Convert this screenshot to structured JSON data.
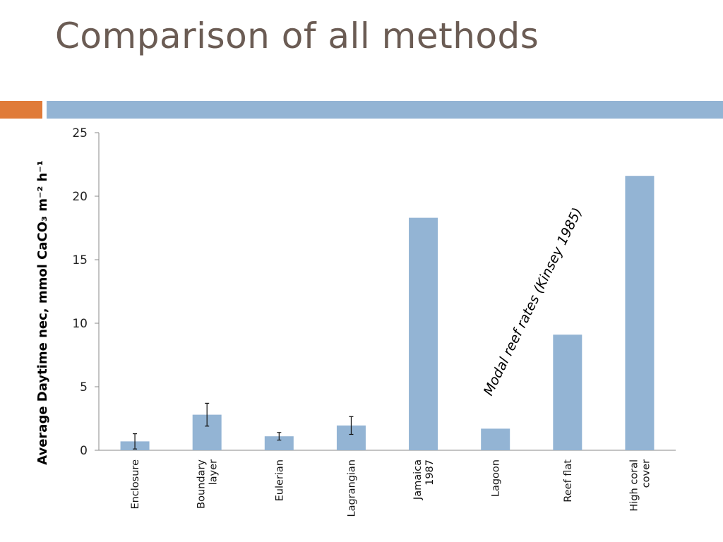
{
  "slide": {
    "title": "Comparison of all methods",
    "accent_colors": {
      "orange": "#e07b39",
      "blue": "#93b4d4"
    }
  },
  "chart_data": {
    "type": "bar",
    "categories": [
      [
        "Enclosure"
      ],
      [
        "Boundary",
        "layer"
      ],
      [
        "Eulerian"
      ],
      [
        "Lagrangian"
      ],
      [
        "Jamaica",
        "1987"
      ],
      [
        "Lagoon"
      ],
      [
        "Reef flat"
      ],
      [
        "High coral",
        "cover"
      ]
    ],
    "values": [
      0.7,
      2.8,
      1.1,
      1.95,
      18.3,
      1.7,
      9.1,
      21.6
    ],
    "error_bars": [
      0.6,
      0.9,
      0.3,
      0.7,
      null,
      null,
      null,
      null
    ],
    "ylim": [
      0,
      25
    ],
    "yticks": [
      0,
      5,
      10,
      15,
      20,
      25
    ],
    "ylabel": "Average Daytime nec, mmol CaCO₃ m⁻² h⁻¹",
    "xlabel": "",
    "annotation": "Modal reef rates (Kinsey 1985)",
    "bar_color": "#93b4d4",
    "grid": false
  }
}
